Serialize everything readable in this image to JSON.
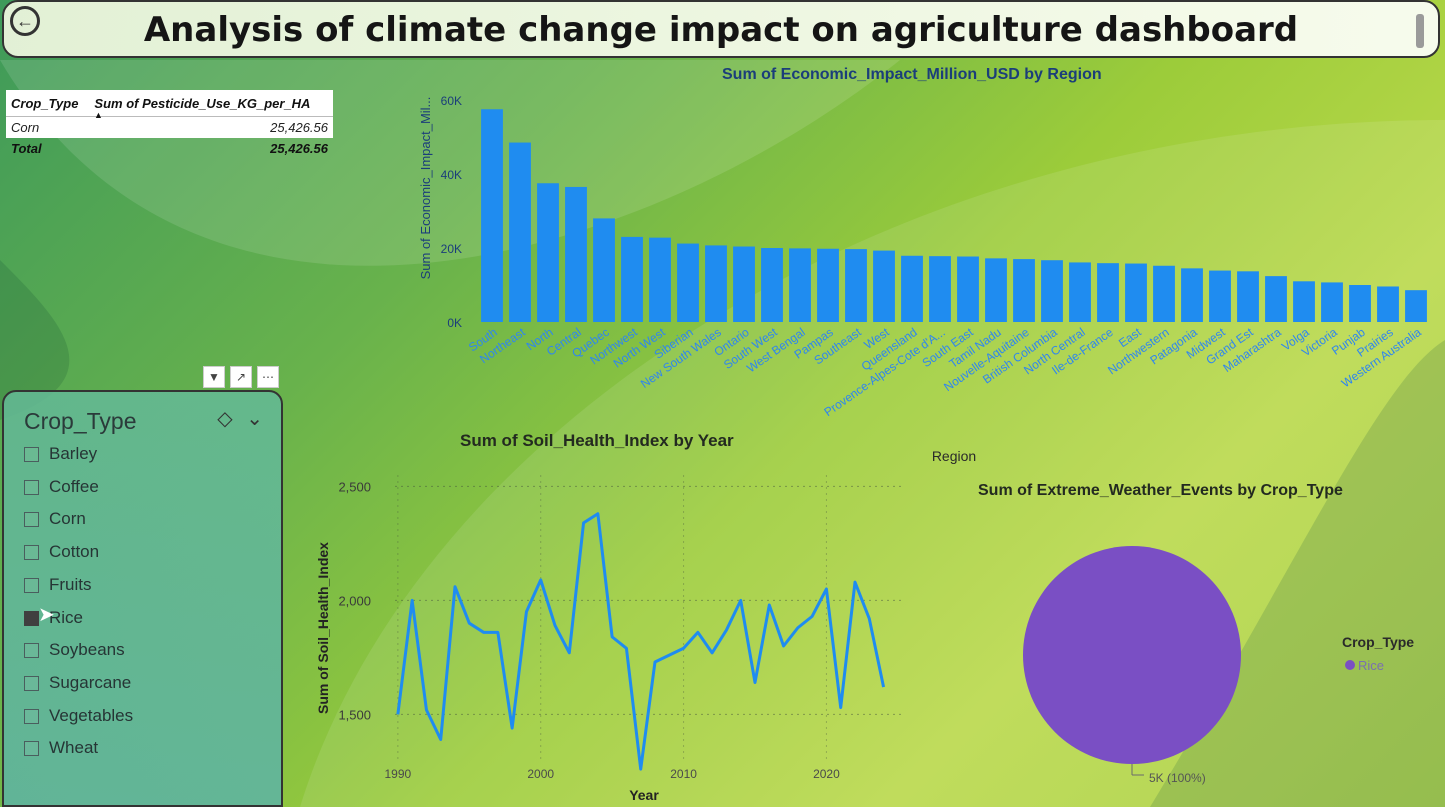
{
  "header": {
    "title": "Analysis of climate change impact on agriculture dashboard",
    "back_icon": "arrow-left-icon"
  },
  "pesticide_table": {
    "columns": [
      "Crop_Type",
      "Sum of Pesticide_Use_KG_per_HA"
    ],
    "rows": [
      {
        "crop": "Corn",
        "value": "25,426.56"
      }
    ],
    "total_label": "Total",
    "total_value": "25,426.56"
  },
  "slicer": {
    "title": "Crop_Type",
    "items": [
      "Barley",
      "Coffee",
      "Corn",
      "Cotton",
      "Fruits",
      "Rice",
      "Soybeans",
      "Sugarcane",
      "Vegetables",
      "Wheat"
    ],
    "selected": "Rice"
  },
  "colors": {
    "bar": "#1f8cf0",
    "line": "#1f8cf0",
    "pie": "#7a4fc4",
    "axis_blue": "#1b3e7a"
  },
  "chart_data": [
    {
      "type": "bar",
      "title": "Sum of Economic_Impact_Million_USD by Region",
      "xlabel": "Region",
      "ylabel": "Sum of Economic_Impact_Mil...",
      "ylim": [
        0,
        60000
      ],
      "yticks": [
        "0K",
        "20K",
        "40K",
        "60K"
      ],
      "categories": [
        "South",
        "Northeast",
        "North",
        "Central",
        "Quebec",
        "Northwest",
        "North West",
        "Siberian",
        "New South Wales",
        "Ontario",
        "South West",
        "West Bengal",
        "Pampas",
        "Southeast",
        "West",
        "Queensland",
        "Provence-Alpes-Cote d'A...",
        "South East",
        "Tamil Nadu",
        "Nouvelle-Aquitaine",
        "British Columbia",
        "North Central",
        "Ile-de-France",
        "East",
        "Northwestern",
        "Patagonia",
        "Midwest",
        "Grand Est",
        "Maharashtra",
        "Volga",
        "Victoria",
        "Punjab",
        "Prairies",
        "Western Australia"
      ],
      "values": [
        57500,
        48500,
        37500,
        36500,
        28000,
        23000,
        22800,
        21200,
        20700,
        20400,
        20000,
        19900,
        19800,
        19700,
        19300,
        17900,
        17800,
        17700,
        17200,
        17000,
        16700,
        16100,
        15900,
        15800,
        15200,
        14500,
        13900,
        13700,
        12400,
        11000,
        10700,
        10000,
        9600,
        8600
      ]
    },
    {
      "type": "line",
      "title": "Sum of Soil_Health_Index by Year",
      "xlabel": "Year",
      "ylabel": "Sum of Soil_Health_Index",
      "xticks": [
        "1990",
        "2000",
        "2010",
        "2020"
      ],
      "yticks": [
        "1,500",
        "2,000",
        "2,500"
      ],
      "x": [
        1990,
        1991,
        1992,
        1993,
        1994,
        1995,
        1996,
        1997,
        1998,
        1999,
        2000,
        2001,
        2002,
        2003,
        2004,
        2005,
        2006,
        2007,
        2008,
        2009,
        2010,
        2011,
        2012,
        2013,
        2014,
        2015,
        2016,
        2017,
        2018,
        2019,
        2020,
        2021,
        2022,
        2023,
        2024
      ],
      "y": [
        1500,
        2000,
        1520,
        1390,
        2060,
        1900,
        1860,
        1860,
        1440,
        1950,
        2090,
        1890,
        1770,
        2340,
        2380,
        1840,
        1790,
        1260,
        1730,
        1760,
        1790,
        1860,
        1770,
        1870,
        2000,
        1640,
        1980,
        1800,
        1880,
        1930,
        2050,
        1530,
        2080,
        1920,
        1620
      ]
    },
    {
      "type": "pie",
      "title": "Sum of Extreme_Weather_Events by Crop_Type",
      "legend_title": "Crop_Type",
      "categories": [
        "Rice"
      ],
      "values": [
        100
      ],
      "data_label": "5K (100%)"
    }
  ]
}
